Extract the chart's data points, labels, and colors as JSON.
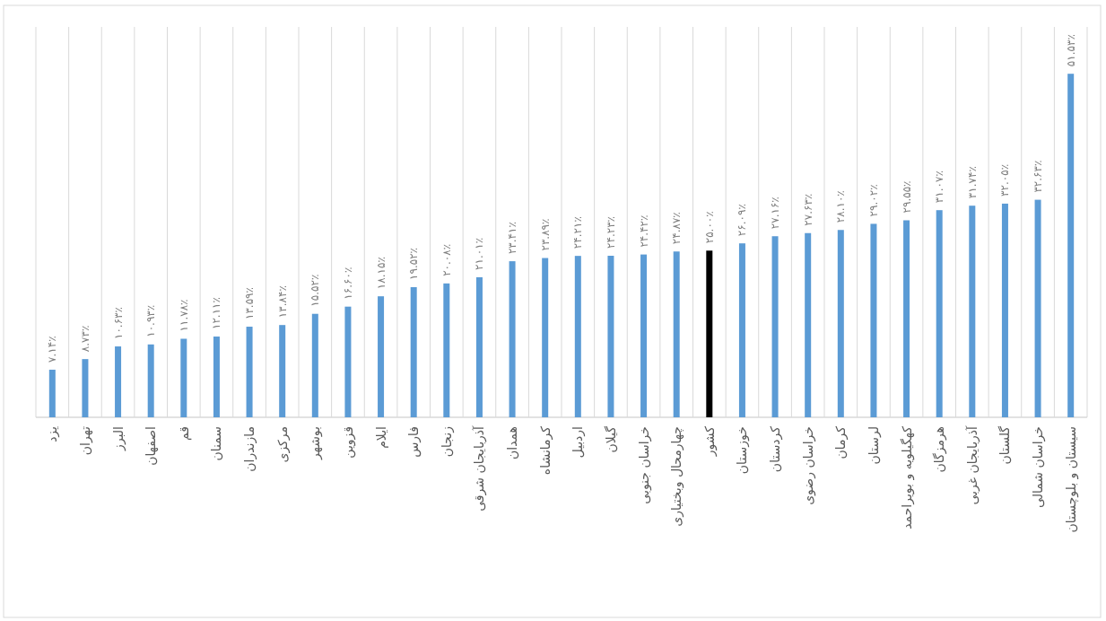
{
  "chart_data": {
    "type": "bar",
    "categories": [
      "یزد",
      "تهران",
      "البرز",
      "اصفهان",
      "قم",
      "سمنان",
      "مازندران",
      "مرکزی",
      "بوشهر",
      "قزوین",
      "ایلام",
      "فارس",
      "زنجان",
      "آذربایجان شرقی",
      "همدان",
      "کرمانشاه",
      "اردبیل",
      "گیلان",
      "خراسان جنوبی",
      "چهارمحال وبختیاری",
      "کشور",
      "خوزستان",
      "کردستان",
      "خراسان رضوی",
      "کرمان",
      "لرستان",
      "کهگیلویه و بویراحمد",
      "هرمزگان",
      "آذربایجان غربی",
      "گلستان",
      "خراسان شمالی",
      "سیستان و بلوچستان"
    ],
    "values": [
      7.14,
      8.73,
      10.63,
      10.93,
      11.78,
      12.11,
      13.59,
      13.84,
      15.52,
      16.6,
      18.15,
      19.52,
      20.08,
      21.01,
      23.41,
      23.89,
      24.21,
      24.23,
      24.42,
      24.87,
      25.0,
      26.09,
      27.16,
      27.63,
      28.1,
      29.02,
      29.55,
      31.07,
      31.74,
      32.05,
      32.63,
      51.53
    ],
    "value_labels": [
      "۷.۱۴٪",
      "۸.۷۳٪",
      "۱۰.۶۳٪",
      "۱۰.۹۳٪",
      "۱۱.۷۸٪",
      "۱۲.۱۱٪",
      "۱۳.۵۹٪",
      "۱۳.۸۴٪",
      "۱۵.۵۲٪",
      "۱۶.۶۰٪",
      "۱۸.۱۵٪",
      "۱۹.۵۲٪",
      "۲۰.۰۸٪",
      "۲۱.۰۱٪",
      "۲۳.۴۱٪",
      "۲۳.۸۹٪",
      "۲۴.۲۱٪",
      "۲۴.۲۳٪",
      "۲۴.۴۲٪",
      "۲۴.۸۷٪",
      "۲۵.۰۰٪",
      "۲۶.۰۹٪",
      "۲۷.۱۶٪",
      "۲۷.۶۳٪",
      "۲۸.۱۰٪",
      "۲۹.۰۲٪",
      "۲۹.۵۵٪",
      "۳۱.۰۷٪",
      "۳۱.۷۴٪",
      "۳۲.۰۵٪",
      "۳۲.۶۳٪",
      "۵۱.۵۳٪"
    ],
    "colors": [
      "#5b9bd5",
      "#5b9bd5",
      "#5b9bd5",
      "#5b9bd5",
      "#5b9bd5",
      "#5b9bd5",
      "#5b9bd5",
      "#5b9bd5",
      "#5b9bd5",
      "#5b9bd5",
      "#5b9bd5",
      "#5b9bd5",
      "#5b9bd5",
      "#5b9bd5",
      "#5b9bd5",
      "#5b9bd5",
      "#5b9bd5",
      "#5b9bd5",
      "#5b9bd5",
      "#5b9bd5",
      "#000000",
      "#5b9bd5",
      "#5b9bd5",
      "#5b9bd5",
      "#5b9bd5",
      "#5b9bd5",
      "#5b9bd5",
      "#5b9bd5",
      "#5b9bd5",
      "#5b9bd5",
      "#5b9bd5",
      "#5b9bd5"
    ],
    "grid": "x"
  }
}
